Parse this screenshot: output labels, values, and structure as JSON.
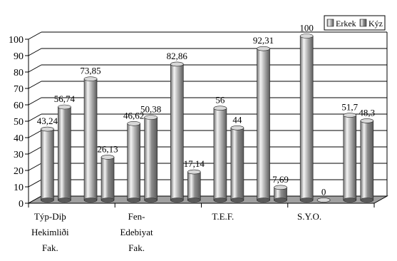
{
  "chart_data": {
    "type": "bar",
    "style": "3d-cylinder",
    "categories": [
      [
        "Týp-Diþ",
        "Hekimliði",
        "Fak."
      ],
      [],
      [
        "Fen-",
        "Edebiyat",
        "Fak."
      ],
      [],
      [
        "T.E.F."
      ],
      [],
      [
        "S.Y.O."
      ],
      []
    ],
    "series": [
      {
        "name": "Erkek",
        "values": [
          43.24,
          73.85,
          46.62,
          82.86,
          56,
          92.31,
          100,
          51.7
        ],
        "color": "#b8b8b8"
      },
      {
        "name": "Kýz",
        "values": [
          56.74,
          26.13,
          50.38,
          17.14,
          44,
          7.69,
          0,
          48.3
        ],
        "color": "#8c8c8c"
      }
    ],
    "labels": {
      "Erkek": [
        "43,24",
        "73,85",
        "46,62",
        "82,86",
        "56",
        "92,31",
        "100",
        "51,7"
      ],
      "Kýz": [
        "56,74",
        "26,13",
        "50,38",
        "17,14",
        "44",
        "7,69",
        "0",
        "48,3"
      ]
    },
    "yticks": [
      "0",
      "10",
      "20",
      "30",
      "40",
      "50",
      "60",
      "70",
      "80",
      "90",
      "100"
    ],
    "ylim": [
      0,
      100
    ],
    "grid": true,
    "legend_position": "top-right",
    "colors": {
      "floor": "#a0a0a0",
      "gridline": "#000000",
      "axis": "#000000"
    }
  }
}
